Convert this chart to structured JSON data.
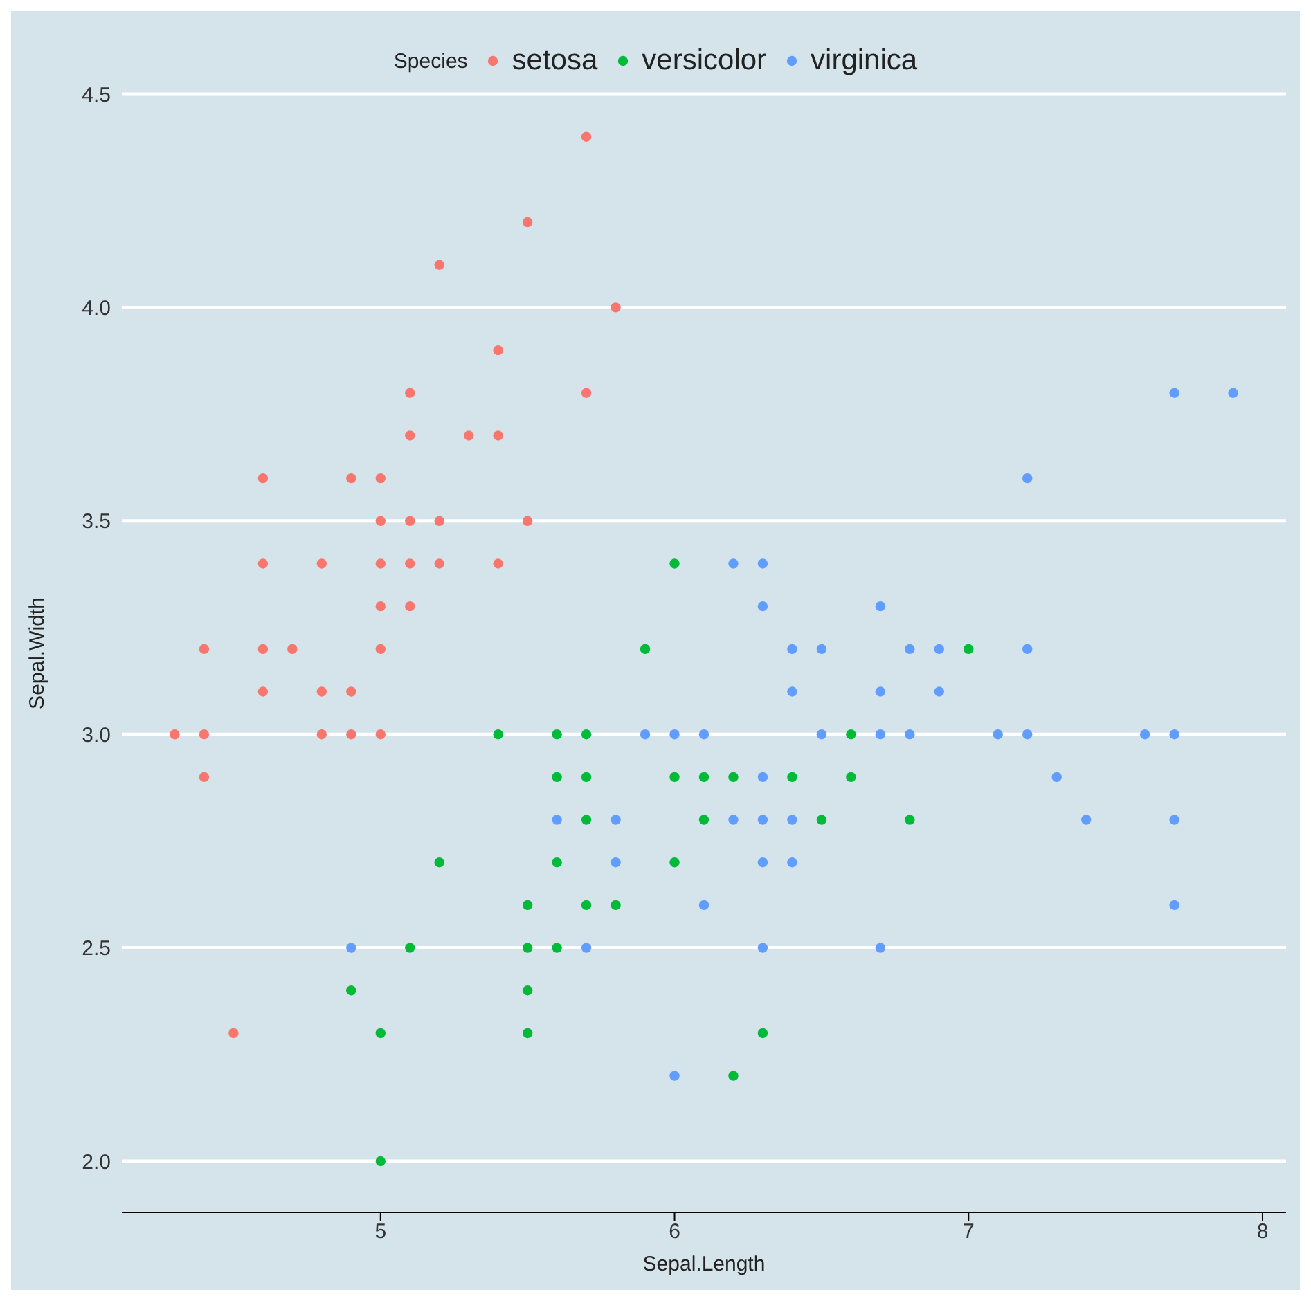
{
  "chart_data": {
    "type": "scatter",
    "xlabel": "Sepal.Length",
    "ylabel": "Sepal.Width",
    "legend_title": "Species",
    "legend": "top",
    "grid": "y",
    "marker": "circle",
    "xlim": [
      4.12,
      8.08
    ],
    "xticks": [
      5,
      6,
      7,
      8
    ],
    "ylim": [
      1.88,
      4.5
    ],
    "yticks": [
      {
        "value": 2,
        "label": "2.0"
      },
      {
        "value": 2.5,
        "label": "2.5"
      },
      {
        "value": 3,
        "label": "3.0"
      },
      {
        "value": 3.5,
        "label": "3.5"
      },
      {
        "value": 4,
        "label": "4.0"
      },
      {
        "value": 4.5,
        "label": "4.5"
      }
    ],
    "series": [
      {
        "name": "setosa",
        "color": "#f8766d",
        "x": [
          5.1,
          4.9,
          4.7,
          4.6,
          5.0,
          5.4,
          4.6,
          5.0,
          4.4,
          4.9,
          5.4,
          4.8,
          4.8,
          4.3,
          5.8,
          5.7,
          5.7,
          5.1,
          5.4,
          5.1,
          4.6,
          5.1,
          5.0,
          5.2,
          5.2,
          4.8,
          5.2,
          5.5,
          5.0,
          5.5,
          4.9,
          4.4,
          5.1,
          5.0,
          4.5,
          4.4,
          4.6,
          5.3,
          5.0
        ],
        "values": [
          3.5,
          3.0,
          3.2,
          3.1,
          3.6,
          3.9,
          3.4,
          3.4,
          2.9,
          3.1,
          3.7,
          3.4,
          3.0,
          3.0,
          4.0,
          4.4,
          3.8,
          3.8,
          3.4,
          3.7,
          3.6,
          3.3,
          3.0,
          3.5,
          3.4,
          3.1,
          4.1,
          4.2,
          3.2,
          3.5,
          3.6,
          3.0,
          3.4,
          3.5,
          2.3,
          3.2,
          3.2,
          3.7,
          3.3
        ]
      },
      {
        "name": "versicolor",
        "color": "#00ba38",
        "x": [
          7.0,
          5.5,
          6.5,
          5.7,
          4.9,
          6.6,
          5.2,
          5.0,
          6.1,
          5.6,
          5.6,
          6.2,
          5.6,
          5.9,
          6.1,
          6.4,
          6.6,
          6.8,
          6.0,
          5.7,
          5.5,
          6.0,
          5.4,
          6.0,
          6.3,
          5.5,
          5.5,
          5.8,
          5.0,
          5.6,
          5.7,
          5.7,
          6.2,
          5.1
        ],
        "values": [
          3.2,
          2.3,
          2.8,
          2.8,
          2.4,
          2.9,
          2.7,
          2.0,
          2.9,
          2.9,
          3.0,
          2.2,
          2.5,
          3.2,
          2.8,
          2.9,
          3.0,
          2.8,
          2.9,
          2.6,
          2.4,
          2.7,
          3.0,
          3.4,
          2.3,
          2.5,
          2.6,
          2.6,
          2.3,
          2.7,
          3.0,
          2.9,
          2.9,
          2.5
        ]
      },
      {
        "name": "virginica",
        "color": "#619cff",
        "x": [
          6.3,
          5.8,
          7.1,
          6.3,
          6.5,
          7.6,
          4.9,
          7.3,
          6.7,
          7.2,
          6.5,
          6.4,
          6.8,
          5.7,
          5.8,
          6.4,
          7.7,
          7.7,
          6.0,
          6.9,
          5.6,
          7.7,
          6.3,
          6.7,
          7.2,
          6.2,
          6.1,
          6.4,
          7.2,
          7.4,
          7.9,
          6.3,
          6.1,
          7.7,
          6.3,
          6.4,
          6.0,
          6.9,
          6.7,
          6.8,
          6.7,
          6.3,
          6.2,
          5.9
        ],
        "values": [
          3.3,
          2.7,
          3.0,
          2.9,
          3.0,
          3.0,
          2.5,
          2.9,
          2.5,
          3.6,
          3.2,
          2.7,
          3.0,
          2.5,
          2.8,
          3.2,
          3.8,
          2.6,
          2.2,
          3.2,
          2.8,
          2.8,
          2.7,
          3.3,
          3.2,
          2.8,
          3.0,
          2.8,
          3.0,
          2.8,
          3.8,
          2.8,
          2.6,
          3.0,
          3.4,
          3.1,
          3.0,
          3.1,
          3.1,
          3.2,
          3.0,
          2.5,
          3.4,
          3.0
        ]
      }
    ]
  }
}
